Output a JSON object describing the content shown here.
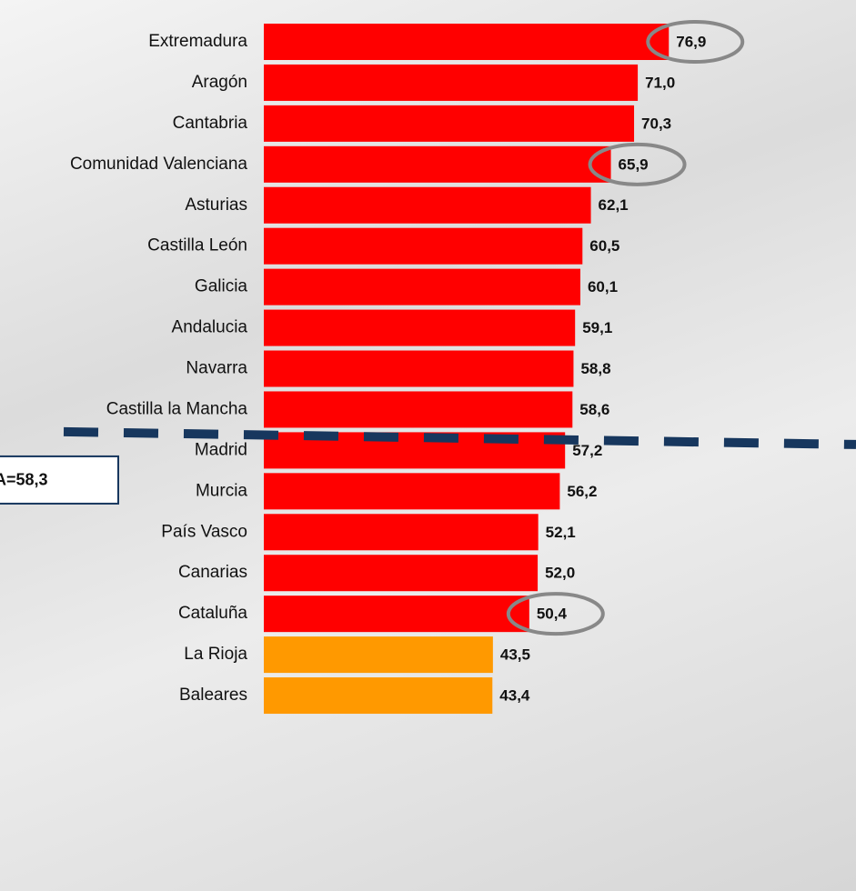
{
  "chart_data": {
    "type": "bar",
    "orientation": "horizontal",
    "categories": [
      "Extremadura",
      "Aragón",
      "Cantabria",
      "Comunidad Valenciana",
      "Asturias",
      "Castilla León",
      "Galicia",
      "Andalucia",
      "Navarra",
      "Castilla la Mancha",
      "Madrid",
      "Murcia",
      "País Vasco",
      "Canarias",
      "Cataluña",
      "La Rioja",
      "Baleares"
    ],
    "values": [
      76.9,
      71.0,
      70.3,
      65.9,
      62.1,
      60.5,
      60.1,
      59.1,
      58.8,
      58.6,
      57.2,
      56.2,
      52.1,
      52.0,
      50.4,
      43.5,
      43.4
    ],
    "value_labels": [
      "76,9",
      "71,0",
      "70,3",
      "65,9",
      "62,1",
      "60,5",
      "60,1",
      "59,1",
      "58,8",
      "58,6",
      "57,2",
      "56,2",
      "52,1",
      "52,0",
      "50,4",
      "43,5",
      "43,4"
    ],
    "colors": [
      "#ff0000",
      "#ff0000",
      "#ff0000",
      "#ff0000",
      "#ff0000",
      "#ff0000",
      "#ff0000",
      "#ff0000",
      "#ff0000",
      "#ff0000",
      "#ff0000",
      "#ff0000",
      "#ff0000",
      "#ff0000",
      "#ff0000",
      "#ff9900",
      "#ff9900"
    ],
    "highlighted": [
      true,
      false,
      false,
      true,
      false,
      false,
      false,
      false,
      false,
      false,
      false,
      false,
      false,
      false,
      true,
      false,
      false
    ],
    "reference_line": {
      "value": 58.3,
      "label": "A=58,3",
      "color": "#17375e"
    }
  }
}
